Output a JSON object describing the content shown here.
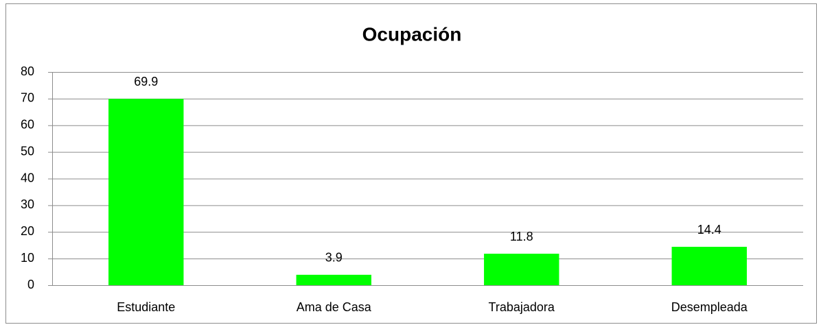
{
  "chart_data": {
    "type": "bar",
    "title": "Ocupación",
    "categories": [
      "Estudiante",
      "Ama de Casa",
      "Trabajadora",
      "Desempleada"
    ],
    "values": [
      69.9,
      3.9,
      11.8,
      14.4
    ],
    "color": "#00ff00",
    "ylim": [
      0,
      80
    ],
    "yticks": [
      0,
      10,
      20,
      30,
      40,
      50,
      60,
      70,
      80
    ],
    "grid": true
  }
}
